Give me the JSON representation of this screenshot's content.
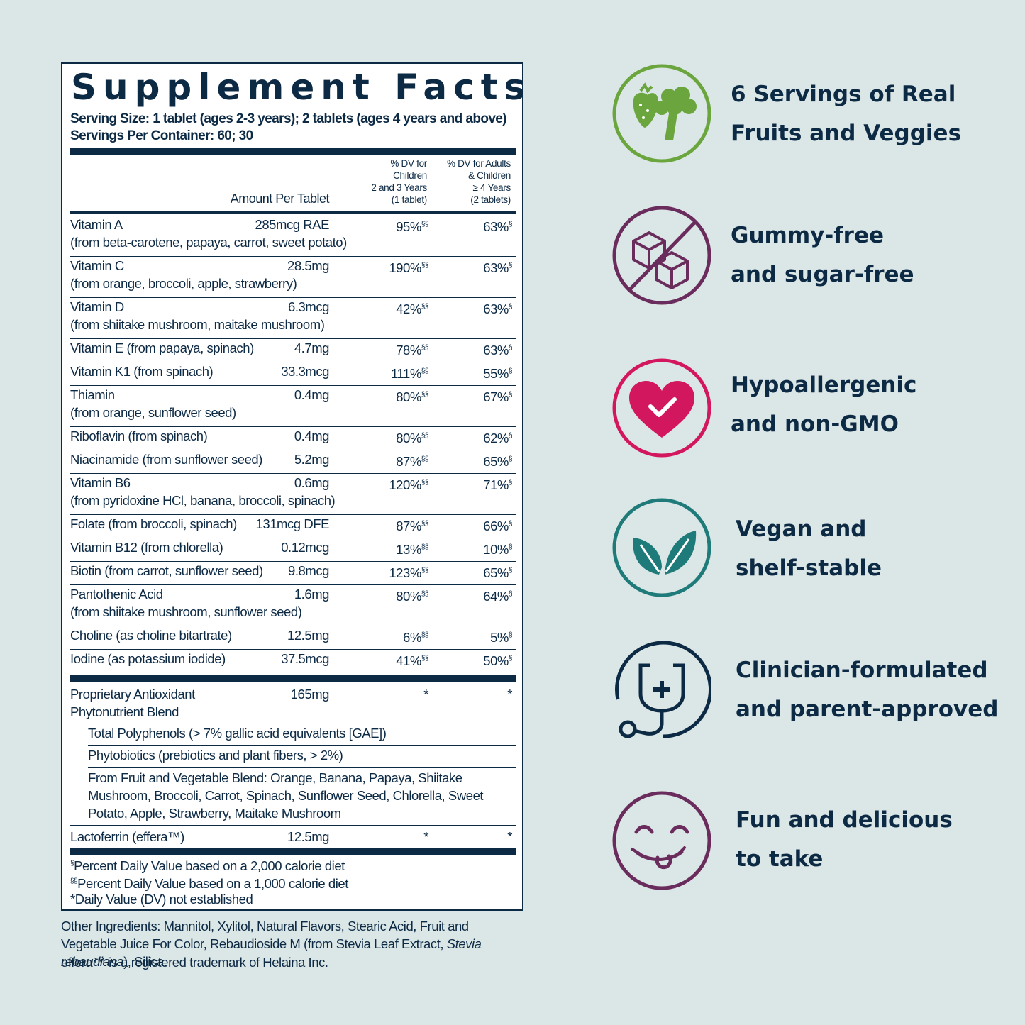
{
  "facts": {
    "title": "Supplement Facts",
    "serving_size": "Serving Size: 1 tablet (ages 2-3 years); 2 tablets (ages 4 years and above)",
    "servings_per_container": "Servings Per Container: 60; 30",
    "col_amount": "Amount Per Tablet",
    "col_children": "% DV for\nChildren\n2 and 3 Years\n(1 tablet)",
    "col_adults": "% DV for Adults\n& Children\n≥ 4 Years\n(2 tablets)",
    "rows": [
      {
        "name": "Vitamin A",
        "sub": "(from beta-carotene, papaya, carrot, sweet potato)",
        "amount": "285mcg RAE",
        "dv_child": "95%",
        "child_mark": "§§",
        "dv_adult": "63%",
        "adult_mark": "§"
      },
      {
        "name": "Vitamin C",
        "sub": "(from orange, broccoli, apple, strawberry)",
        "amount": "28.5mg",
        "dv_child": "190%",
        "child_mark": "§§",
        "dv_adult": "63%",
        "adult_mark": "§"
      },
      {
        "name": "Vitamin D",
        "sub": "(from shiitake mushroom, maitake mushroom)",
        "amount": "6.3mcg",
        "dv_child": "42%",
        "child_mark": "§§",
        "dv_adult": "63%",
        "adult_mark": "§"
      },
      {
        "name": "Vitamin E (from papaya, spinach)",
        "sub": "",
        "amount": "4.7mg",
        "dv_child": "78%",
        "child_mark": "§§",
        "dv_adult": "63%",
        "adult_mark": "§"
      },
      {
        "name": "Vitamin K1 (from spinach)",
        "sub": "",
        "amount": "33.3mcg",
        "dv_child": "111%",
        "child_mark": "§§",
        "dv_adult": "55%",
        "adult_mark": "§"
      },
      {
        "name": "Thiamin",
        "sub": "(from orange, sunflower seed)",
        "amount": "0.4mg",
        "dv_child": "80%",
        "child_mark": "§§",
        "dv_adult": "67%",
        "adult_mark": "§"
      },
      {
        "name": "Riboflavin (from spinach)",
        "sub": "",
        "amount": "0.4mg",
        "dv_child": "80%",
        "child_mark": "§§",
        "dv_adult": "62%",
        "adult_mark": "§"
      },
      {
        "name": "Niacinamide (from sunflower seed)",
        "sub": "",
        "amount": "5.2mg",
        "dv_child": "87%",
        "child_mark": "§§",
        "dv_adult": "65%",
        "adult_mark": "§"
      },
      {
        "name": "Vitamin B6",
        "sub": "(from pyridoxine HCl, banana, broccoli, spinach)",
        "amount": "0.6mg",
        "dv_child": "120%",
        "child_mark": "§§",
        "dv_adult": "71%",
        "adult_mark": "§"
      },
      {
        "name": "Folate (from broccoli, spinach)",
        "sub": "",
        "amount": "131mcg DFE",
        "dv_child": "87%",
        "child_mark": "§§",
        "dv_adult": "66%",
        "adult_mark": "§"
      },
      {
        "name": "Vitamin B12 (from chlorella)",
        "sub": "",
        "amount": "0.12mcg",
        "dv_child": "13%",
        "child_mark": "§§",
        "dv_adult": "10%",
        "adult_mark": "§"
      },
      {
        "name": "Biotin (from carrot, sunflower seed)",
        "sub": "",
        "amount": "9.8mcg",
        "dv_child": "123%",
        "child_mark": "§§",
        "dv_adult": "65%",
        "adult_mark": "§"
      },
      {
        "name": "Pantothenic Acid",
        "sub": "(from shiitake mushroom, sunflower seed)",
        "amount": "1.6mg",
        "dv_child": "80%",
        "child_mark": "§§",
        "dv_adult": "64%",
        "adult_mark": "§"
      },
      {
        "name": "Choline (as choline bitartrate)",
        "sub": "",
        "amount": "12.5mg",
        "dv_child": "6%",
        "child_mark": "§§",
        "dv_adult": "5%",
        "adult_mark": "§"
      },
      {
        "name": "Iodine (as potassium iodide)",
        "sub": "",
        "amount": "37.5mcg",
        "dv_child": "41%",
        "child_mark": "§§",
        "dv_adult": "50%",
        "adult_mark": "§"
      }
    ],
    "blend": {
      "name": "Proprietary Antioxidant",
      "sub": "Phytonutrient Blend",
      "amount": "165mg",
      "dv_child": "*",
      "dv_adult": "*",
      "items": [
        "Total Polyphenols (> 7% gallic acid equivalents [GAE])",
        "Phytobiotics (prebiotics and plant fibers, > 2%)",
        "From Fruit and Vegetable Blend: Orange, Banana, Papaya, Shiitake Mushroom, Broccoli, Carrot, Spinach, Sunflower Seed, Chlorella, Sweet Potato, Apple, Strawberry, Maitake Mushroom"
      ]
    },
    "lactoferrin": {
      "name": "Lactoferrin (effera™)",
      "amount": "12.5mg",
      "dv_child": "*",
      "dv_adult": "*"
    },
    "footnotes": [
      {
        "mark": "§",
        "text": "Percent Daily Value based on a 2,000 calorie diet"
      },
      {
        "mark": "§§",
        "text": "Percent Daily Value based on a 1,000 calorie diet"
      },
      {
        "mark": "",
        "text": "*Daily Value (DV) not established"
      }
    ]
  },
  "other_ingredients": {
    "lead": "Other Ingredients: Mannitol, Xylitol, Natural Flavors, Stearic Acid, Fruit and Vegetable Juice For Color, Rebaudioside M (from Stevia Leaf Extract, ",
    "latin": "Stevia rebaudiana",
    "tail": "), Silica.",
    "trademark": "effera™ is a registered trademark of Helaina Inc."
  },
  "features": [
    {
      "icon": "fruit-veggie-icon",
      "color": "#6ba53e",
      "line1": "6 Servings of Real",
      "line2": "Fruits and Veggies"
    },
    {
      "icon": "no-sugar-cubes-icon",
      "color": "#6a2c5c",
      "line1": "Gummy-free",
      "line2": "and sugar-free"
    },
    {
      "icon": "heart-check-icon",
      "color": "#d3175e",
      "line1": "Hypoallergenic",
      "line2": "and non-GMO"
    },
    {
      "icon": "leaves-icon",
      "color": "#1f7a7a",
      "line1": "Vegan and",
      "line2": "shelf-stable"
    },
    {
      "icon": "stethoscope-icon",
      "color": "#0d2a45",
      "line1": "Clinician-formulated",
      "line2": "and parent-approved"
    },
    {
      "icon": "smiley-tongue-icon",
      "color": "#6a2c5c",
      "line1": "Fun and delicious",
      "line2": "to take"
    }
  ]
}
